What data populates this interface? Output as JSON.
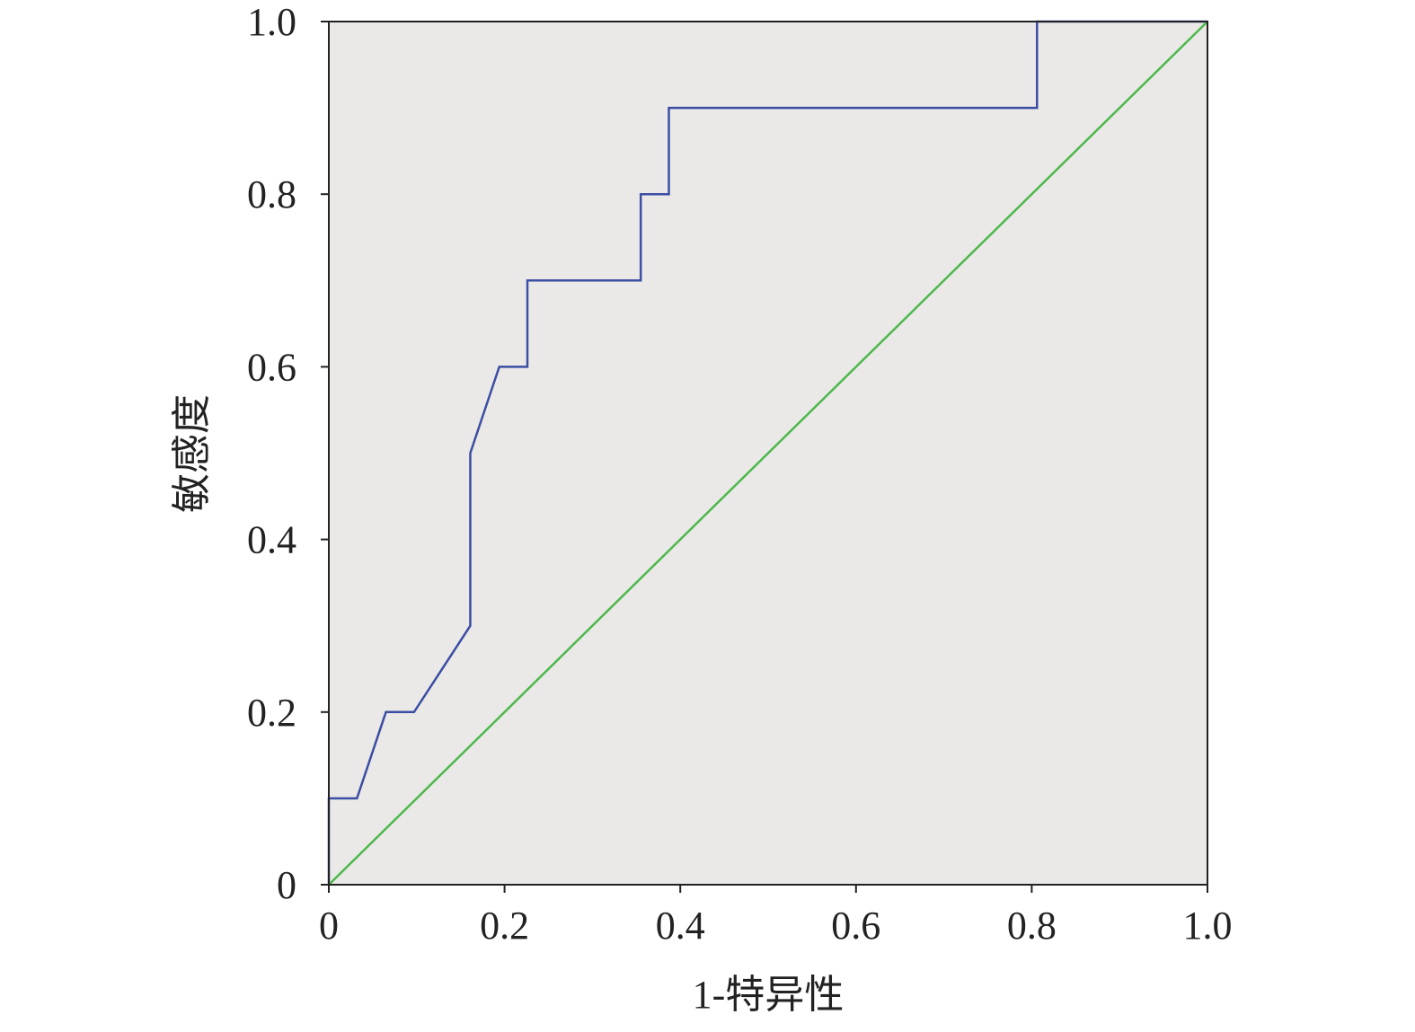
{
  "chart_data": {
    "type": "line",
    "xlabel": "1-特异性",
    "ylabel": "敏感度",
    "background": "#ebe9e7",
    "series": [
      {
        "color": "#3b4ea3",
        "x": [
          0,
          0,
          0.032,
          0.065,
          0.097,
          0.161,
          0.161,
          0.194,
          0.226,
          0.226,
          0.355,
          0.355,
          0.387,
          0.387,
          0.806,
          0.806,
          1
        ],
        "values": [
          0,
          0.1,
          0.1,
          0.2,
          0.2,
          0.3,
          0.5,
          0.6,
          0.6,
          0.7,
          0.7,
          0.8,
          0.8,
          0.9,
          0.9,
          1,
          1
        ]
      },
      {
        "color": "#4cb84c",
        "x": [
          0,
          1
        ],
        "values": [
          0,
          1
        ]
      }
    ],
    "xlim": [
      0,
      1
    ],
    "ylim": [
      0,
      1
    ],
    "xticks": [
      0,
      0.2,
      0.4,
      0.6,
      0.8,
      {
        "value": 1,
        "label": "1.0"
      }
    ],
    "yticks": [
      0,
      0.2,
      0.4,
      0.6,
      0.8,
      {
        "value": 1,
        "label": "1.0"
      }
    ]
  }
}
